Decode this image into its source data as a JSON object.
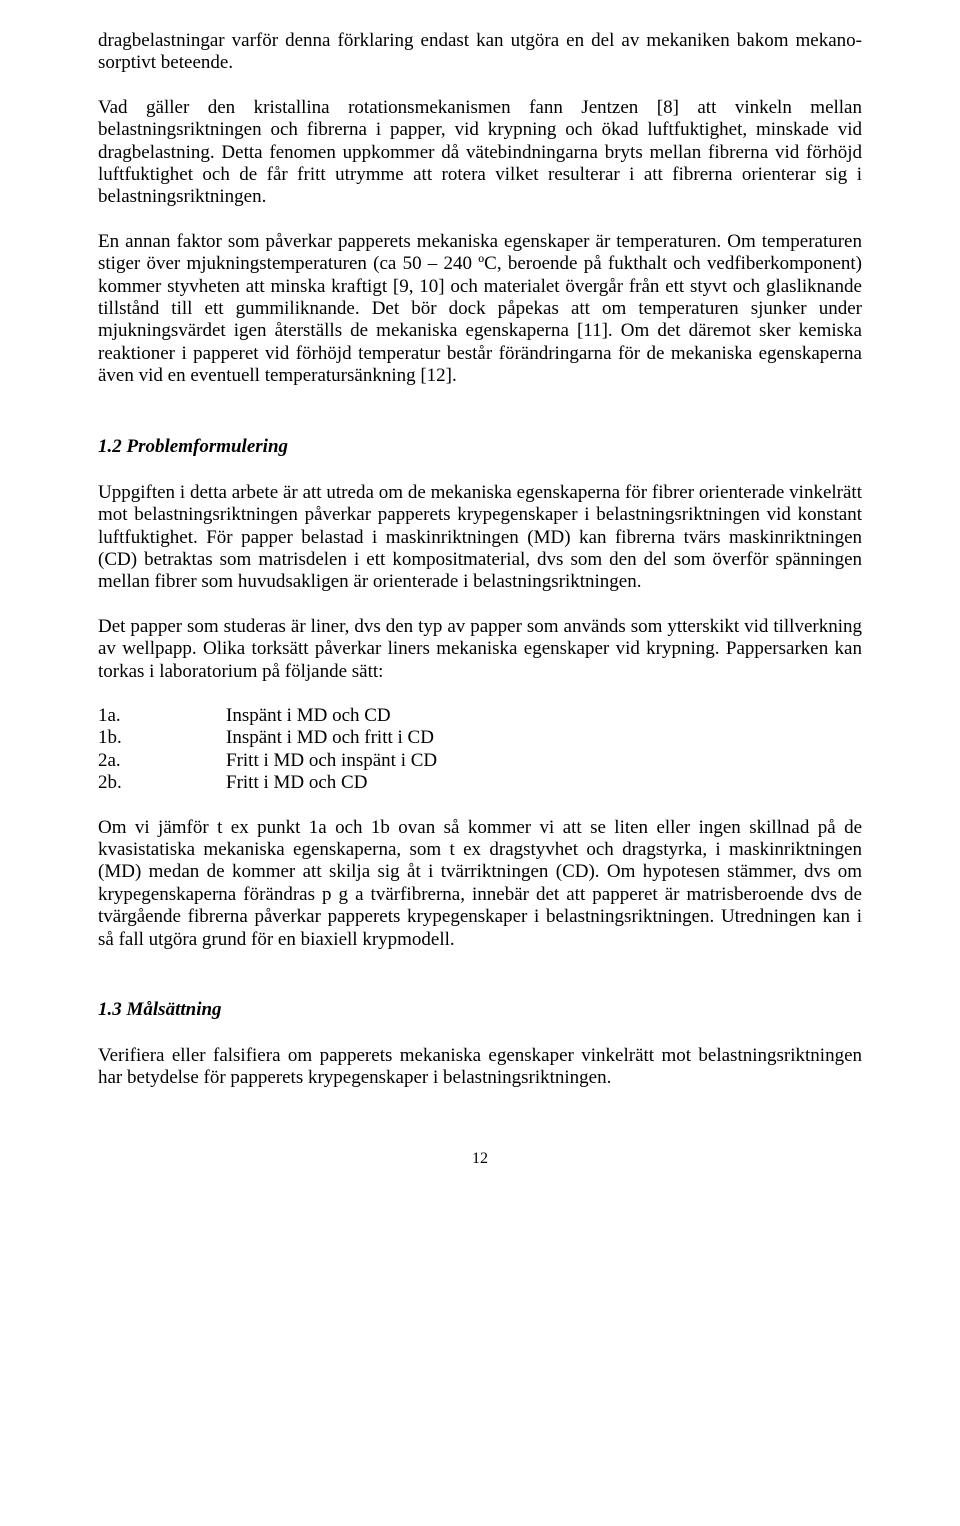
{
  "para1": "dragbelastningar varför denna förklaring endast kan utgöra en del av mekaniken bakom mekano-sorptivt beteende.",
  "para2": "Vad gäller den kristallina rotationsmekanismen fann Jentzen [8] att vinkeln mellan belastningsriktningen och fibrerna i papper, vid krypning och ökad luftfuktighet, minskade vid dragbelastning. Detta fenomen uppkommer då vätebindningarna bryts mellan fibrerna vid förhöjd luftfuktighet och de får fritt utrymme att rotera vilket resulterar i att fibrerna orienterar sig i belastningsriktningen.",
  "para3": "En annan faktor som påverkar papperets mekaniska egenskaper är temperaturen. Om temperaturen stiger över mjukningstemperaturen (ca 50 – 240 ºC, beroende på fukthalt och vedfiberkomponent) kommer styvheten att minska kraftigt [9, 10] och materialet övergår från ett styvt och glasliknande tillstånd till ett gummiliknande. Det bör dock påpekas att om temperaturen sjunker under mjukningsvärdet igen återställs de mekaniska egenskaperna [11]. Om det däremot sker kemiska reaktioner i papperet vid förhöjd temperatur består förändringarna för de mekaniska egenskaperna även vid en eventuell temperatursänkning [12].",
  "heading1": "1.2 Problemformulering",
  "para4": "Uppgiften i detta arbete är att utreda om de mekaniska egenskaperna för fibrer orienterade vinkelrätt mot belastningsriktningen påverkar papperets krypegenskaper i belastningsriktningen vid konstant luftfuktighet. För papper belastad i maskinriktningen (MD) kan fibrerna tvärs maskinriktningen (CD) betraktas som matrisdelen i ett kompositmaterial, dvs som den del som överför spänningen mellan fibrer som huvudsakligen är orienterade i belastningsriktningen.",
  "para5": "Det papper som studeras är liner, dvs den typ av papper som används som ytterskikt vid tillverkning av wellpapp. Olika torksätt påverkar liners mekaniska egenskaper vid krypning. Pappersarken kan torkas i laboratorium på följande sätt:",
  "list": [
    {
      "key": "1a.",
      "val": "Inspänt i MD och CD"
    },
    {
      "key": "1b.",
      "val": "Inspänt i MD och fritt i CD"
    },
    {
      "key": "2a.",
      "val": "Fritt i MD och inspänt i CD"
    },
    {
      "key": "2b.",
      "val": "Fritt i MD och CD"
    }
  ],
  "para6": "Om vi jämför t ex punkt 1a och 1b ovan så kommer vi att se liten eller ingen skillnad på de kvasistatiska mekaniska egenskaperna, som t ex dragstyvhet och dragstyrka, i maskinriktningen (MD) medan de kommer att skilja sig åt i tvärriktningen (CD). Om hypotesen stämmer, dvs om krypegenskaperna förändras p g a tvärfibrerna, innebär det att papperet är matrisberoende dvs de tvärgående fibrerna påverkar papperets krypegenskaper i belastningsriktningen. Utredningen kan i så fall utgöra grund för en biaxiell krypmodell.",
  "heading2": "1.3 Målsättning",
  "para7": "Verifiera eller falsifiera om papperets mekaniska egenskaper vinkelrätt mot belastningsriktningen har betydelse för papperets krypegenskaper i belastningsriktningen.",
  "pageNumber": "12"
}
